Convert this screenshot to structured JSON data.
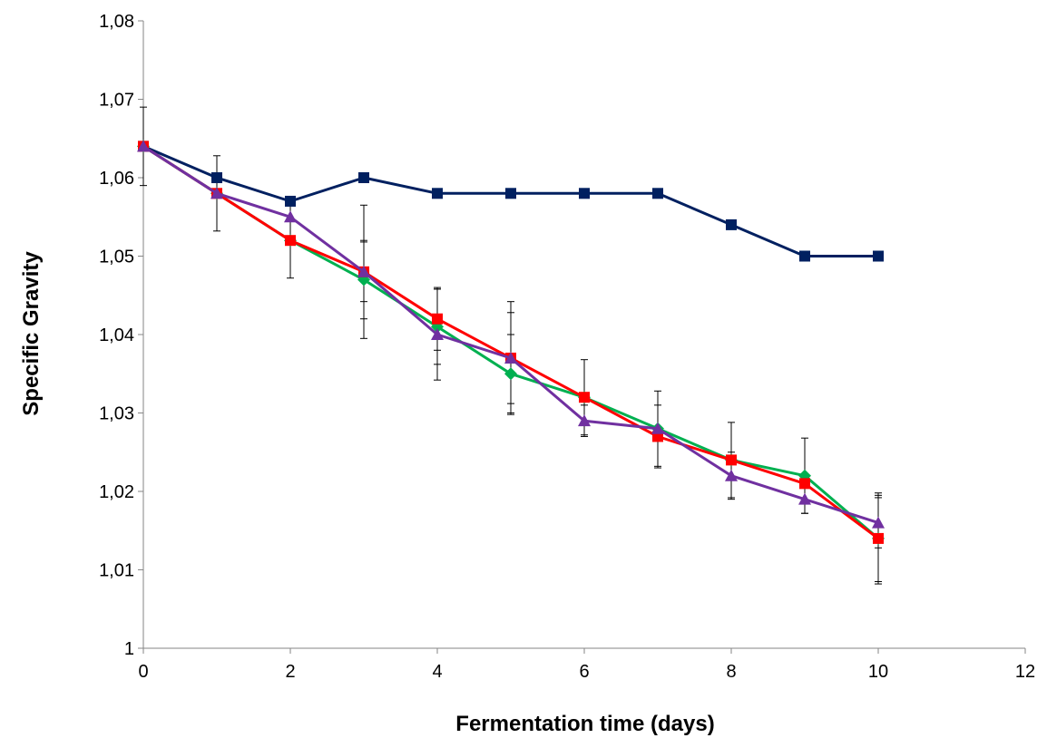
{
  "chart_data": {
    "type": "line",
    "xlabel": "Fermentation time (days)",
    "ylabel": "Specific Gravity",
    "xlim": [
      0,
      12
    ],
    "ylim": [
      1.0,
      1.08
    ],
    "x_ticks": [
      0,
      2,
      4,
      6,
      8,
      10,
      12
    ],
    "x_tick_labels": [
      "0",
      "2",
      "4",
      "6",
      "8",
      "10",
      "12"
    ],
    "y_ticks": [
      1.0,
      1.01,
      1.02,
      1.03,
      1.04,
      1.05,
      1.06,
      1.07,
      1.08
    ],
    "y_tick_labels": [
      "1",
      "1,01",
      "1,02",
      "1,03",
      "1,04",
      "1,05",
      "1,06",
      "1,07",
      "1,08"
    ],
    "grid": false,
    "legend": false,
    "series": [
      {
        "color": "#002060",
        "marker": "square",
        "x": [
          0,
          1,
          2,
          3,
          4,
          5,
          6,
          7,
          8,
          9,
          10
        ],
        "values": [
          1.064,
          1.06,
          1.057,
          1.06,
          1.058,
          1.058,
          1.058,
          1.058,
          1.054,
          1.05,
          1.05
        ],
        "error": [
          0.005,
          null,
          null,
          null,
          null,
          null,
          null,
          null,
          null,
          null,
          null
        ]
      },
      {
        "color": "#00B050",
        "marker": "diamond",
        "x": [
          0,
          1,
          2,
          3,
          4,
          5,
          6,
          7,
          8,
          9,
          10
        ],
        "values": [
          1.064,
          1.058,
          1.052,
          1.047,
          1.041,
          1.035,
          1.032,
          1.028,
          1.024,
          1.022,
          1.014
        ],
        "error": [
          null,
          0.0048,
          0.0048,
          0.005,
          0.0048,
          0.005,
          0.0048,
          0.0048,
          0.0048,
          0.0048,
          0.0055
        ]
      },
      {
        "color": "#FF0000",
        "marker": "square",
        "x": [
          0,
          1,
          2,
          3,
          4,
          5,
          6,
          7,
          8,
          9,
          10
        ],
        "values": [
          1.064,
          1.058,
          1.052,
          1.048,
          1.042,
          1.037,
          1.032,
          1.027,
          1.024,
          1.021,
          1.014
        ],
        "error": [
          null,
          null,
          null,
          0.0038,
          0.004,
          0.0072,
          null,
          0.004,
          null,
          null,
          0.0058
        ]
      },
      {
        "color": "#7030A0",
        "marker": "triangle",
        "x": [
          0,
          1,
          2,
          3,
          4,
          5,
          6,
          7,
          8,
          9,
          10
        ],
        "values": [
          1.064,
          1.058,
          1.055,
          1.048,
          1.04,
          1.037,
          1.029,
          1.028,
          1.022,
          1.019,
          1.016
        ],
        "error": [
          null,
          null,
          null,
          0.0085,
          0.0058,
          0.0058,
          0.002,
          null,
          0.003,
          0.0018,
          0.0032
        ]
      }
    ]
  }
}
